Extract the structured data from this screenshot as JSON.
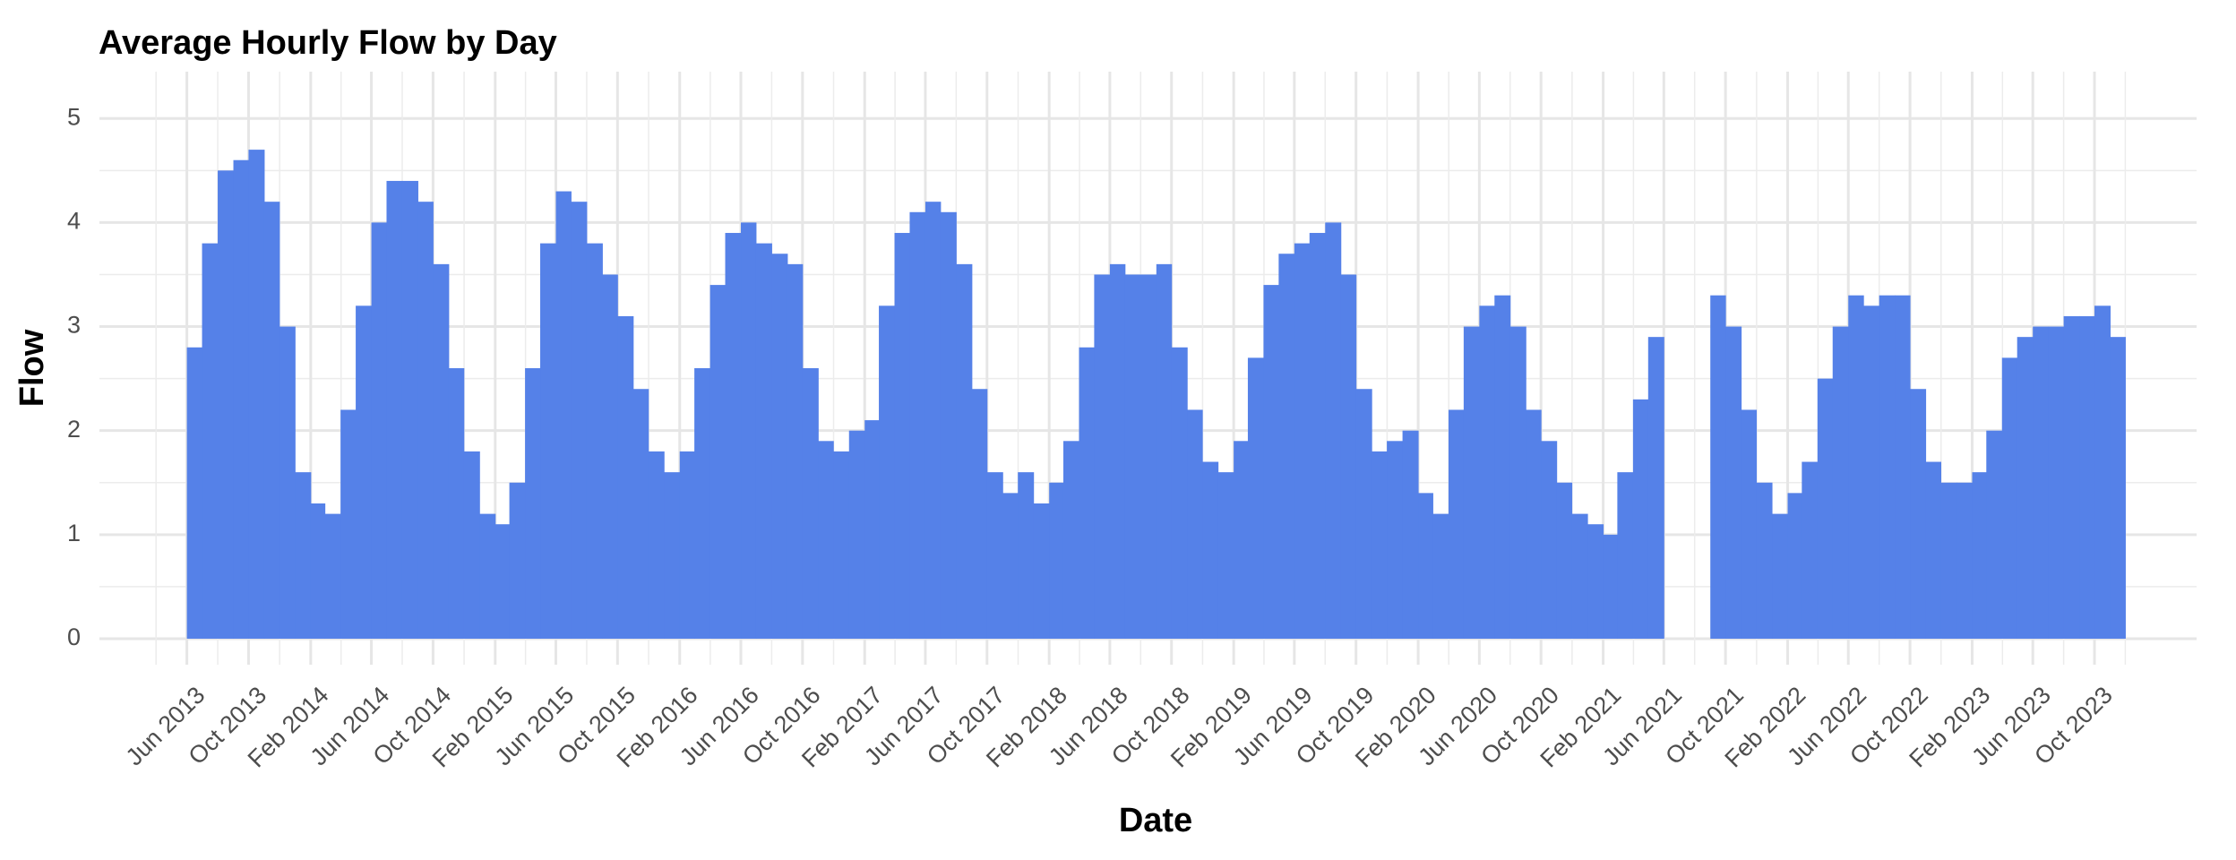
{
  "chart_data": {
    "type": "bar",
    "title": "Average Hourly Flow by Day",
    "x_label": "Date",
    "y_label": "Flow",
    "color": "#5581e8",
    "grid": true,
    "x": [
      "2013-06",
      "2013-07",
      "2013-08",
      "2013-09",
      "2013-10",
      "2013-11",
      "2013-12",
      "2014-01",
      "2014-02",
      "2014-03",
      "2014-04",
      "2014-05",
      "2014-06",
      "2014-07",
      "2014-08",
      "2014-09",
      "2014-10",
      "2014-11",
      "2014-12",
      "2015-01",
      "2015-02",
      "2015-03",
      "2015-04",
      "2015-05",
      "2015-06",
      "2015-07",
      "2015-08",
      "2015-09",
      "2015-10",
      "2015-11",
      "2015-12",
      "2016-01",
      "2016-02",
      "2016-03",
      "2016-04",
      "2016-05",
      "2016-06",
      "2016-07",
      "2016-08",
      "2016-09",
      "2016-10",
      "2016-11",
      "2016-12",
      "2017-01",
      "2017-02",
      "2017-03",
      "2017-04",
      "2017-05",
      "2017-06",
      "2017-07",
      "2017-08",
      "2017-09",
      "2017-10",
      "2017-11",
      "2017-12",
      "2018-01",
      "2018-02",
      "2018-03",
      "2018-04",
      "2018-05",
      "2018-06",
      "2018-07",
      "2018-08",
      "2018-09",
      "2018-10",
      "2018-11",
      "2018-12",
      "2019-01",
      "2019-02",
      "2019-03",
      "2019-04",
      "2019-05",
      "2019-06",
      "2019-07",
      "2019-08",
      "2019-09",
      "2019-10",
      "2019-11",
      "2019-12",
      "2020-01",
      "2020-02",
      "2020-03",
      "2020-04",
      "2020-05",
      "2020-06",
      "2020-07",
      "2020-08",
      "2020-09",
      "2020-10",
      "2020-11",
      "2020-12",
      "2021-01",
      "2021-02",
      "2021-03",
      "2021-04",
      "2021-05",
      "2021-06",
      "2021-07",
      "2021-08",
      "2021-09",
      "2021-10",
      "2021-11",
      "2021-12",
      "2022-01",
      "2022-02",
      "2022-03",
      "2022-04",
      "2022-05",
      "2022-06",
      "2022-07",
      "2022-08",
      "2022-09",
      "2022-10",
      "2022-11",
      "2022-12",
      "2023-01",
      "2023-02",
      "2023-03",
      "2023-04",
      "2023-05",
      "2023-06",
      "2023-07",
      "2023-08",
      "2023-09",
      "2023-10",
      "2023-11"
    ],
    "values": [
      2.8,
      3.8,
      4.5,
      4.6,
      4.7,
      4.2,
      3.0,
      1.6,
      1.3,
      1.2,
      2.2,
      3.2,
      4.0,
      4.4,
      4.4,
      4.2,
      3.6,
      2.6,
      1.8,
      1.2,
      1.1,
      1.5,
      2.6,
      3.8,
      4.3,
      4.2,
      3.8,
      3.5,
      3.1,
      2.4,
      1.8,
      1.6,
      1.8,
      2.6,
      3.4,
      3.9,
      4.0,
      3.8,
      3.7,
      3.6,
      2.6,
      1.9,
      1.8,
      2.0,
      2.1,
      3.2,
      3.9,
      4.1,
      4.2,
      4.1,
      3.6,
      2.4,
      1.6,
      1.4,
      1.6,
      1.3,
      1.5,
      1.9,
      2.8,
      3.5,
      3.6,
      3.5,
      3.5,
      3.6,
      2.8,
      2.2,
      1.7,
      1.6,
      1.9,
      2.7,
      3.4,
      3.7,
      3.8,
      3.9,
      4.0,
      3.5,
      2.4,
      1.8,
      1.9,
      2.0,
      1.4,
      1.2,
      2.2,
      3.0,
      3.2,
      3.3,
      3.0,
      2.2,
      1.9,
      1.5,
      1.2,
      1.1,
      1.0,
      1.6,
      2.3,
      2.9,
      null,
      null,
      null,
      3.3,
      3.0,
      2.2,
      1.5,
      1.2,
      1.4,
      1.7,
      2.5,
      3.0,
      3.3,
      3.2,
      3.3,
      3.3,
      2.4,
      1.7,
      1.5,
      1.5,
      1.6,
      2.0,
      2.7,
      2.9,
      3.0,
      3.0,
      3.1,
      3.1,
      3.2,
      2.9
    ],
    "xlim": [
      "2012-12-10",
      "2024-04-20"
    ],
    "xticks": [
      {
        "value": "2013-06-01",
        "label": "Jun 2013"
      },
      {
        "value": "2013-10-01",
        "label": "Oct 2013"
      },
      {
        "value": "2014-02-01",
        "label": "Feb 2014"
      },
      {
        "value": "2014-06-01",
        "label": "Jun 2014"
      },
      {
        "value": "2014-10-01",
        "label": "Oct 2014"
      },
      {
        "value": "2015-02-01",
        "label": "Feb 2015"
      },
      {
        "value": "2015-06-01",
        "label": "Jun 2015"
      },
      {
        "value": "2015-10-01",
        "label": "Oct 2015"
      },
      {
        "value": "2016-02-01",
        "label": "Feb 2016"
      },
      {
        "value": "2016-06-01",
        "label": "Jun 2016"
      },
      {
        "value": "2016-10-01",
        "label": "Oct 2016"
      },
      {
        "value": "2017-02-01",
        "label": "Feb 2017"
      },
      {
        "value": "2017-06-01",
        "label": "Jun 2017"
      },
      {
        "value": "2017-10-01",
        "label": "Oct 2017"
      },
      {
        "value": "2018-02-01",
        "label": "Feb 2018"
      },
      {
        "value": "2018-06-01",
        "label": "Jun 2018"
      },
      {
        "value": "2018-10-01",
        "label": "Oct 2018"
      },
      {
        "value": "2019-02-01",
        "label": "Feb 2019"
      },
      {
        "value": "2019-06-01",
        "label": "Jun 2019"
      },
      {
        "value": "2019-10-01",
        "label": "Oct 2019"
      },
      {
        "value": "2020-02-01",
        "label": "Feb 2020"
      },
      {
        "value": "2020-06-01",
        "label": "Jun 2020"
      },
      {
        "value": "2020-10-01",
        "label": "Oct 2020"
      },
      {
        "value": "2021-02-01",
        "label": "Feb 2021"
      },
      {
        "value": "2021-06-01",
        "label": "Jun 2021"
      },
      {
        "value": "2021-10-01",
        "label": "Oct 2021"
      },
      {
        "value": "2022-02-01",
        "label": "Feb 2022"
      },
      {
        "value": "2022-06-01",
        "label": "Jun 2022"
      },
      {
        "value": "2022-10-01",
        "label": "Oct 2022"
      },
      {
        "value": "2023-02-01",
        "label": "Feb 2023"
      },
      {
        "value": "2023-06-01",
        "label": "Jun 2023"
      },
      {
        "value": "2023-10-01",
        "label": "Oct 2023"
      }
    ],
    "ylim": [
      -0.25,
      5.45
    ],
    "yticks": [
      0,
      1,
      2,
      3,
      4,
      5
    ]
  }
}
